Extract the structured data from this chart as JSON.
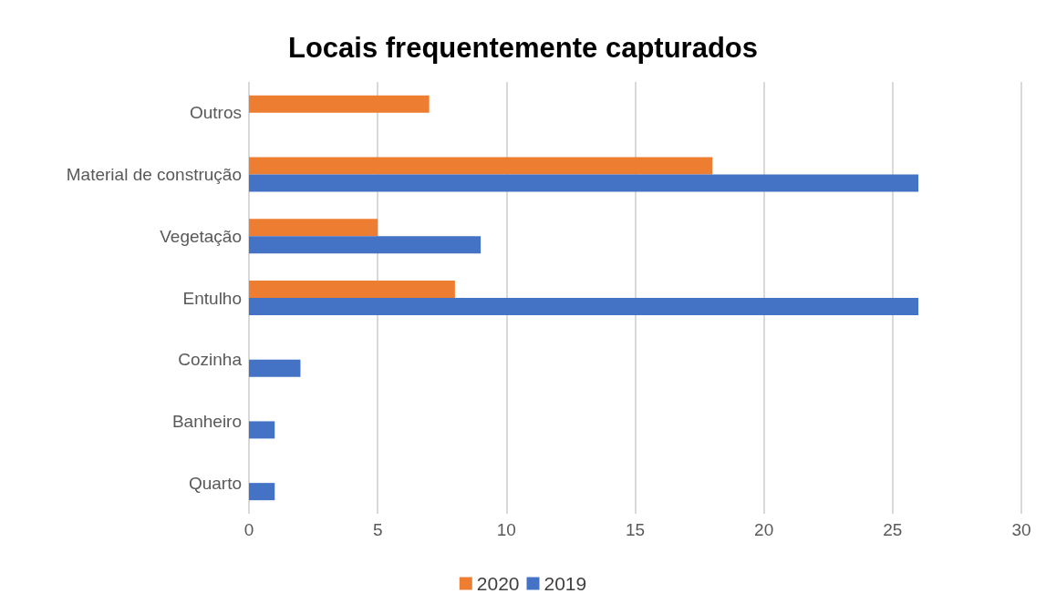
{
  "chart_data": {
    "type": "bar",
    "orientation": "horizontal",
    "title": "Locais frequentemente capturados",
    "categories": [
      "Outros",
      "Material de construção",
      "Vegetação",
      "Entulho",
      "Cozinha",
      "Banheiro",
      "Quarto"
    ],
    "series": [
      {
        "name": "2020",
        "color": "#ed7d31",
        "values": [
          7,
          18,
          5,
          8,
          null,
          null,
          null
        ]
      },
      {
        "name": "2019",
        "color": "#4472c4",
        "values": [
          null,
          26,
          9,
          26,
          2,
          1,
          1
        ]
      }
    ],
    "xlim": [
      0,
      30
    ],
    "xticks": [
      0,
      5,
      10,
      15,
      20,
      25,
      30
    ],
    "grid": "x",
    "legend": "bottom"
  }
}
